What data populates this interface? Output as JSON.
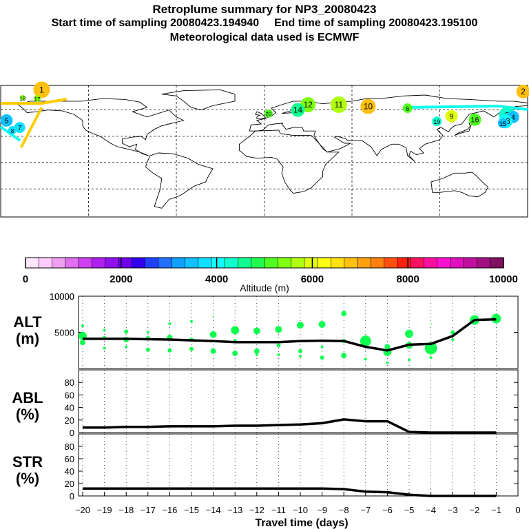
{
  "header": {
    "title": "Retroplume summary for NP3_20080423",
    "start_label": "Start time of sampling 20080423.194940",
    "end_label": "End time of sampling 20080423.195100",
    "met_label": "Meteorological data used is ECMWF"
  },
  "map": {
    "description_labels": [
      "1",
      "2",
      "3",
      "4",
      "5",
      "6",
      "7",
      "8",
      "9",
      "10",
      "11",
      "12",
      "13",
      "14",
      "15",
      "16",
      "17",
      "18",
      "19",
      "20"
    ],
    "plume_points": [
      {
        "n": "1",
        "lon": -152,
        "lat": 83,
        "alt": 6800,
        "size": 12
      },
      {
        "n": "2",
        "lon": 177,
        "lat": 81,
        "alt": 6800,
        "size": 10
      },
      {
        "n": "3",
        "lon": 166,
        "lat": 54,
        "alt": 4400,
        "size": 12
      },
      {
        "n": "4",
        "lon": 170,
        "lat": 52,
        "alt": 3500,
        "size": 9
      },
      {
        "n": "5",
        "lon": -176,
        "lat": 48,
        "alt": 3600,
        "size": 9
      },
      {
        "n": "6",
        "lon": 98,
        "lat": 62,
        "alt": 5000,
        "size": 7
      },
      {
        "n": "7",
        "lon": -167,
        "lat": 40,
        "alt": 3700,
        "size": 8
      },
      {
        "n": "8",
        "lon": -172,
        "lat": 37,
        "alt": 3800,
        "size": 6
      },
      {
        "n": "9",
        "lon": 128,
        "lat": 53,
        "alt": 6000,
        "size": 9
      },
      {
        "n": "10",
        "lon": 71,
        "lat": 64,
        "alt": 6800,
        "size": 11
      },
      {
        "n": "11",
        "lon": 51,
        "lat": 66,
        "alt": 5600,
        "size": 12
      },
      {
        "n": "12",
        "lon": 30,
        "lat": 66,
        "alt": 5500,
        "size": 11
      },
      {
        "n": "13",
        "lon": 165,
        "lat": 47,
        "alt": 3900,
        "size": 10
      },
      {
        "n": "14",
        "lon": 23,
        "lat": 60,
        "alt": 4500,
        "size": 10
      },
      {
        "n": "15",
        "lon": 163,
        "lat": 45,
        "alt": 3600,
        "size": 7
      },
      {
        "n": "16",
        "lon": 144,
        "lat": 49,
        "alt": 5000,
        "size": 9
      },
      {
        "n": "17",
        "lon": -155,
        "lat": 73,
        "alt": 5400,
        "size": 5
      },
      {
        "n": "18",
        "lon": -165,
        "lat": 74,
        "alt": 5300,
        "size": 4
      },
      {
        "n": "19",
        "lon": 118,
        "lat": 47,
        "alt": 4300,
        "size": 7
      },
      {
        "n": "20",
        "lon": 3,
        "lat": 56,
        "alt": 5200,
        "size": 6
      }
    ]
  },
  "colorbar": {
    "tick_labels": [
      "0",
      "2000",
      "4000",
      "6000",
      "8000",
      "10000"
    ],
    "axis_label": "Altitude (m)",
    "colors": [
      "#ffe6ff",
      "#ffccff",
      "#f0a0f0",
      "#e070f0",
      "#d040f0",
      "#b020f0",
      "#9010f0",
      "#7000f0",
      "#3000f0",
      "#2040ff",
      "#2070ff",
      "#10a0ff",
      "#10c0ff",
      "#10e0ff",
      "#10ffff",
      "#10ffcc",
      "#10ff90",
      "#20ff50",
      "#50ff20",
      "#80ff10",
      "#b0ff10",
      "#e0ff10",
      "#ffff10",
      "#ffe010",
      "#ffc010",
      "#ffa010",
      "#ff8010",
      "#ff5010",
      "#ff2010",
      "#ff1060",
      "#ff10a0",
      "#ff10d0",
      "#e010c0",
      "#c010a0",
      "#a01080",
      "#801060"
    ]
  },
  "chart_data": [
    {
      "type": "line",
      "panel": "ALT",
      "ylabel": "ALT\n(m)",
      "ylabel_line1": "ALT",
      "ylabel_line2": "(m)",
      "ylim": [
        0,
        10000
      ],
      "yticks": [
        0,
        5000,
        10000
      ],
      "ytick_labels": [
        "",
        "5000",
        "10000"
      ],
      "x": [
        -20,
        -19,
        -18,
        -17,
        -16,
        -15,
        -14,
        -13,
        -12,
        -11,
        -10,
        -9,
        -8,
        -7,
        -6,
        -5,
        -4,
        -3,
        -2,
        -1
      ],
      "values": [
        4100,
        4100,
        4100,
        4050,
        4000,
        3900,
        3800,
        3650,
        3650,
        3650,
        3800,
        3850,
        3800,
        3000,
        2500,
        3300,
        3400,
        4500,
        6700,
        6800
      ],
      "scatter": [
        {
          "x": -20,
          "y": 5900,
          "s": 2
        },
        {
          "x": -20,
          "y": 4500,
          "s": 6
        },
        {
          "x": -20,
          "y": 3600,
          "s": 4
        },
        {
          "x": -19,
          "y": 5300,
          "s": 2
        },
        {
          "x": -19,
          "y": 4200,
          "s": 3
        },
        {
          "x": -19,
          "y": 2800,
          "s": 2
        },
        {
          "x": -18,
          "y": 5100,
          "s": 3
        },
        {
          "x": -18,
          "y": 4000,
          "s": 4
        },
        {
          "x": -18,
          "y": 3000,
          "s": 2
        },
        {
          "x": -17,
          "y": 5000,
          "s": 2
        },
        {
          "x": -17,
          "y": 4200,
          "s": 3
        },
        {
          "x": -17,
          "y": 2600,
          "s": 3
        },
        {
          "x": -16,
          "y": 6200,
          "s": 2
        },
        {
          "x": -16,
          "y": 4300,
          "s": 4
        },
        {
          "x": -16,
          "y": 2500,
          "s": 3
        },
        {
          "x": -15,
          "y": 6500,
          "s": 2
        },
        {
          "x": -15,
          "y": 4000,
          "s": 3
        },
        {
          "x": -15,
          "y": 2700,
          "s": 3
        },
        {
          "x": -14,
          "y": 7200,
          "s": 1
        },
        {
          "x": -14,
          "y": 4700,
          "s": 5
        },
        {
          "x": -14,
          "y": 2400,
          "s": 4
        },
        {
          "x": -13,
          "y": 5300,
          "s": 6
        },
        {
          "x": -13,
          "y": 3800,
          "s": 3
        },
        {
          "x": -13,
          "y": 2100,
          "s": 4
        },
        {
          "x": -12,
          "y": 5200,
          "s": 5
        },
        {
          "x": -12,
          "y": 2400,
          "s": 4
        },
        {
          "x": -12,
          "y": 1900,
          "s": 2
        },
        {
          "x": -11,
          "y": 5400,
          "s": 5
        },
        {
          "x": -11,
          "y": 3200,
          "s": 3
        },
        {
          "x": -11,
          "y": 1900,
          "s": 2
        },
        {
          "x": -10,
          "y": 6000,
          "s": 5
        },
        {
          "x": -10,
          "y": 2400,
          "s": 3
        },
        {
          "x": -10,
          "y": 1700,
          "s": 2
        },
        {
          "x": -9,
          "y": 6100,
          "s": 5
        },
        {
          "x": -9,
          "y": 3000,
          "s": 2
        },
        {
          "x": -9,
          "y": 1500,
          "s": 3
        },
        {
          "x": -8,
          "y": 7600,
          "s": 4
        },
        {
          "x": -8,
          "y": 3800,
          "s": 3
        },
        {
          "x": -8,
          "y": 1800,
          "s": 4
        },
        {
          "x": -7,
          "y": 3800,
          "s": 8
        },
        {
          "x": -7,
          "y": 1300,
          "s": 2
        },
        {
          "x": -6,
          "y": 3000,
          "s": 4
        },
        {
          "x": -6,
          "y": 2300,
          "s": 6
        },
        {
          "x": -6,
          "y": 800,
          "s": 2
        },
        {
          "x": -5,
          "y": 4800,
          "s": 6
        },
        {
          "x": -5,
          "y": 3200,
          "s": 5
        },
        {
          "x": -5,
          "y": 1200,
          "s": 2
        },
        {
          "x": -4,
          "y": 6200,
          "s": 1
        },
        {
          "x": -4,
          "y": 2800,
          "s": 9
        },
        {
          "x": -4,
          "y": 1500,
          "s": 2
        },
        {
          "x": -3,
          "y": 5000,
          "s": 3
        },
        {
          "x": -3,
          "y": 4000,
          "s": 2
        },
        {
          "x": -2,
          "y": 6700,
          "s": 7
        },
        {
          "x": -2,
          "y": 6300,
          "s": 2
        },
        {
          "x": -1,
          "y": 6900,
          "s": 7
        }
      ]
    },
    {
      "type": "line",
      "panel": "ABL",
      "ylabel_line1": "ABL",
      "ylabel_line2": "(%)",
      "ylim": [
        0,
        100
      ],
      "yticks": [
        0,
        20,
        40,
        60,
        80
      ],
      "ytick_labels": [
        "0",
        "20",
        "40",
        "60",
        "80"
      ],
      "x": [
        -20,
        -19,
        -18,
        -17,
        -16,
        -15,
        -14,
        -13,
        -12,
        -11,
        -10,
        -9,
        -8,
        -7,
        -6,
        -5,
        -4,
        -3,
        -2,
        -1
      ],
      "values": [
        8,
        8,
        9,
        9,
        10,
        10,
        10,
        11,
        11,
        12,
        13,
        15,
        21,
        18,
        18,
        1,
        0,
        0,
        0,
        0
      ]
    },
    {
      "type": "line",
      "panel": "STR",
      "ylabel_line1": "STR",
      "ylabel_line2": "(%)",
      "ylim": [
        0,
        100
      ],
      "yticks": [
        0,
        20,
        40,
        60,
        80
      ],
      "ytick_labels": [
        "0",
        "20",
        "40",
        "60",
        "80"
      ],
      "x": [
        -20,
        -19,
        -18,
        -17,
        -16,
        -15,
        -14,
        -13,
        -12,
        -11,
        -10,
        -9,
        -8,
        -7,
        -6,
        -5,
        -4,
        -3,
        -2,
        -1
      ],
      "values": [
        12,
        12,
        12,
        12,
        12,
        12,
        12,
        12,
        12,
        12,
        12,
        12,
        11,
        7,
        6,
        2,
        0,
        0,
        0,
        0
      ]
    }
  ],
  "xaxis": {
    "ticks": [
      -20,
      -19,
      -18,
      -17,
      -16,
      -15,
      -14,
      -13,
      -12,
      -11,
      -10,
      -9,
      -8,
      -7,
      -6,
      -5,
      -4,
      -3,
      -2,
      -1,
      0
    ],
    "tick_labels": [
      "−20",
      "−19",
      "−18",
      "−17",
      "−16",
      "−15",
      "−14",
      "−13",
      "−12",
      "−11",
      "−10",
      "−9",
      "−8",
      "−7",
      "−6",
      "−5",
      "−4",
      "−3",
      "−2",
      "−1",
      "0"
    ],
    "label": "Travel time (days)"
  },
  "colors": {
    "line": "#000000",
    "scatter": "#10ff50",
    "track": "#10ffee",
    "track_arctic": "#ffcc00"
  }
}
